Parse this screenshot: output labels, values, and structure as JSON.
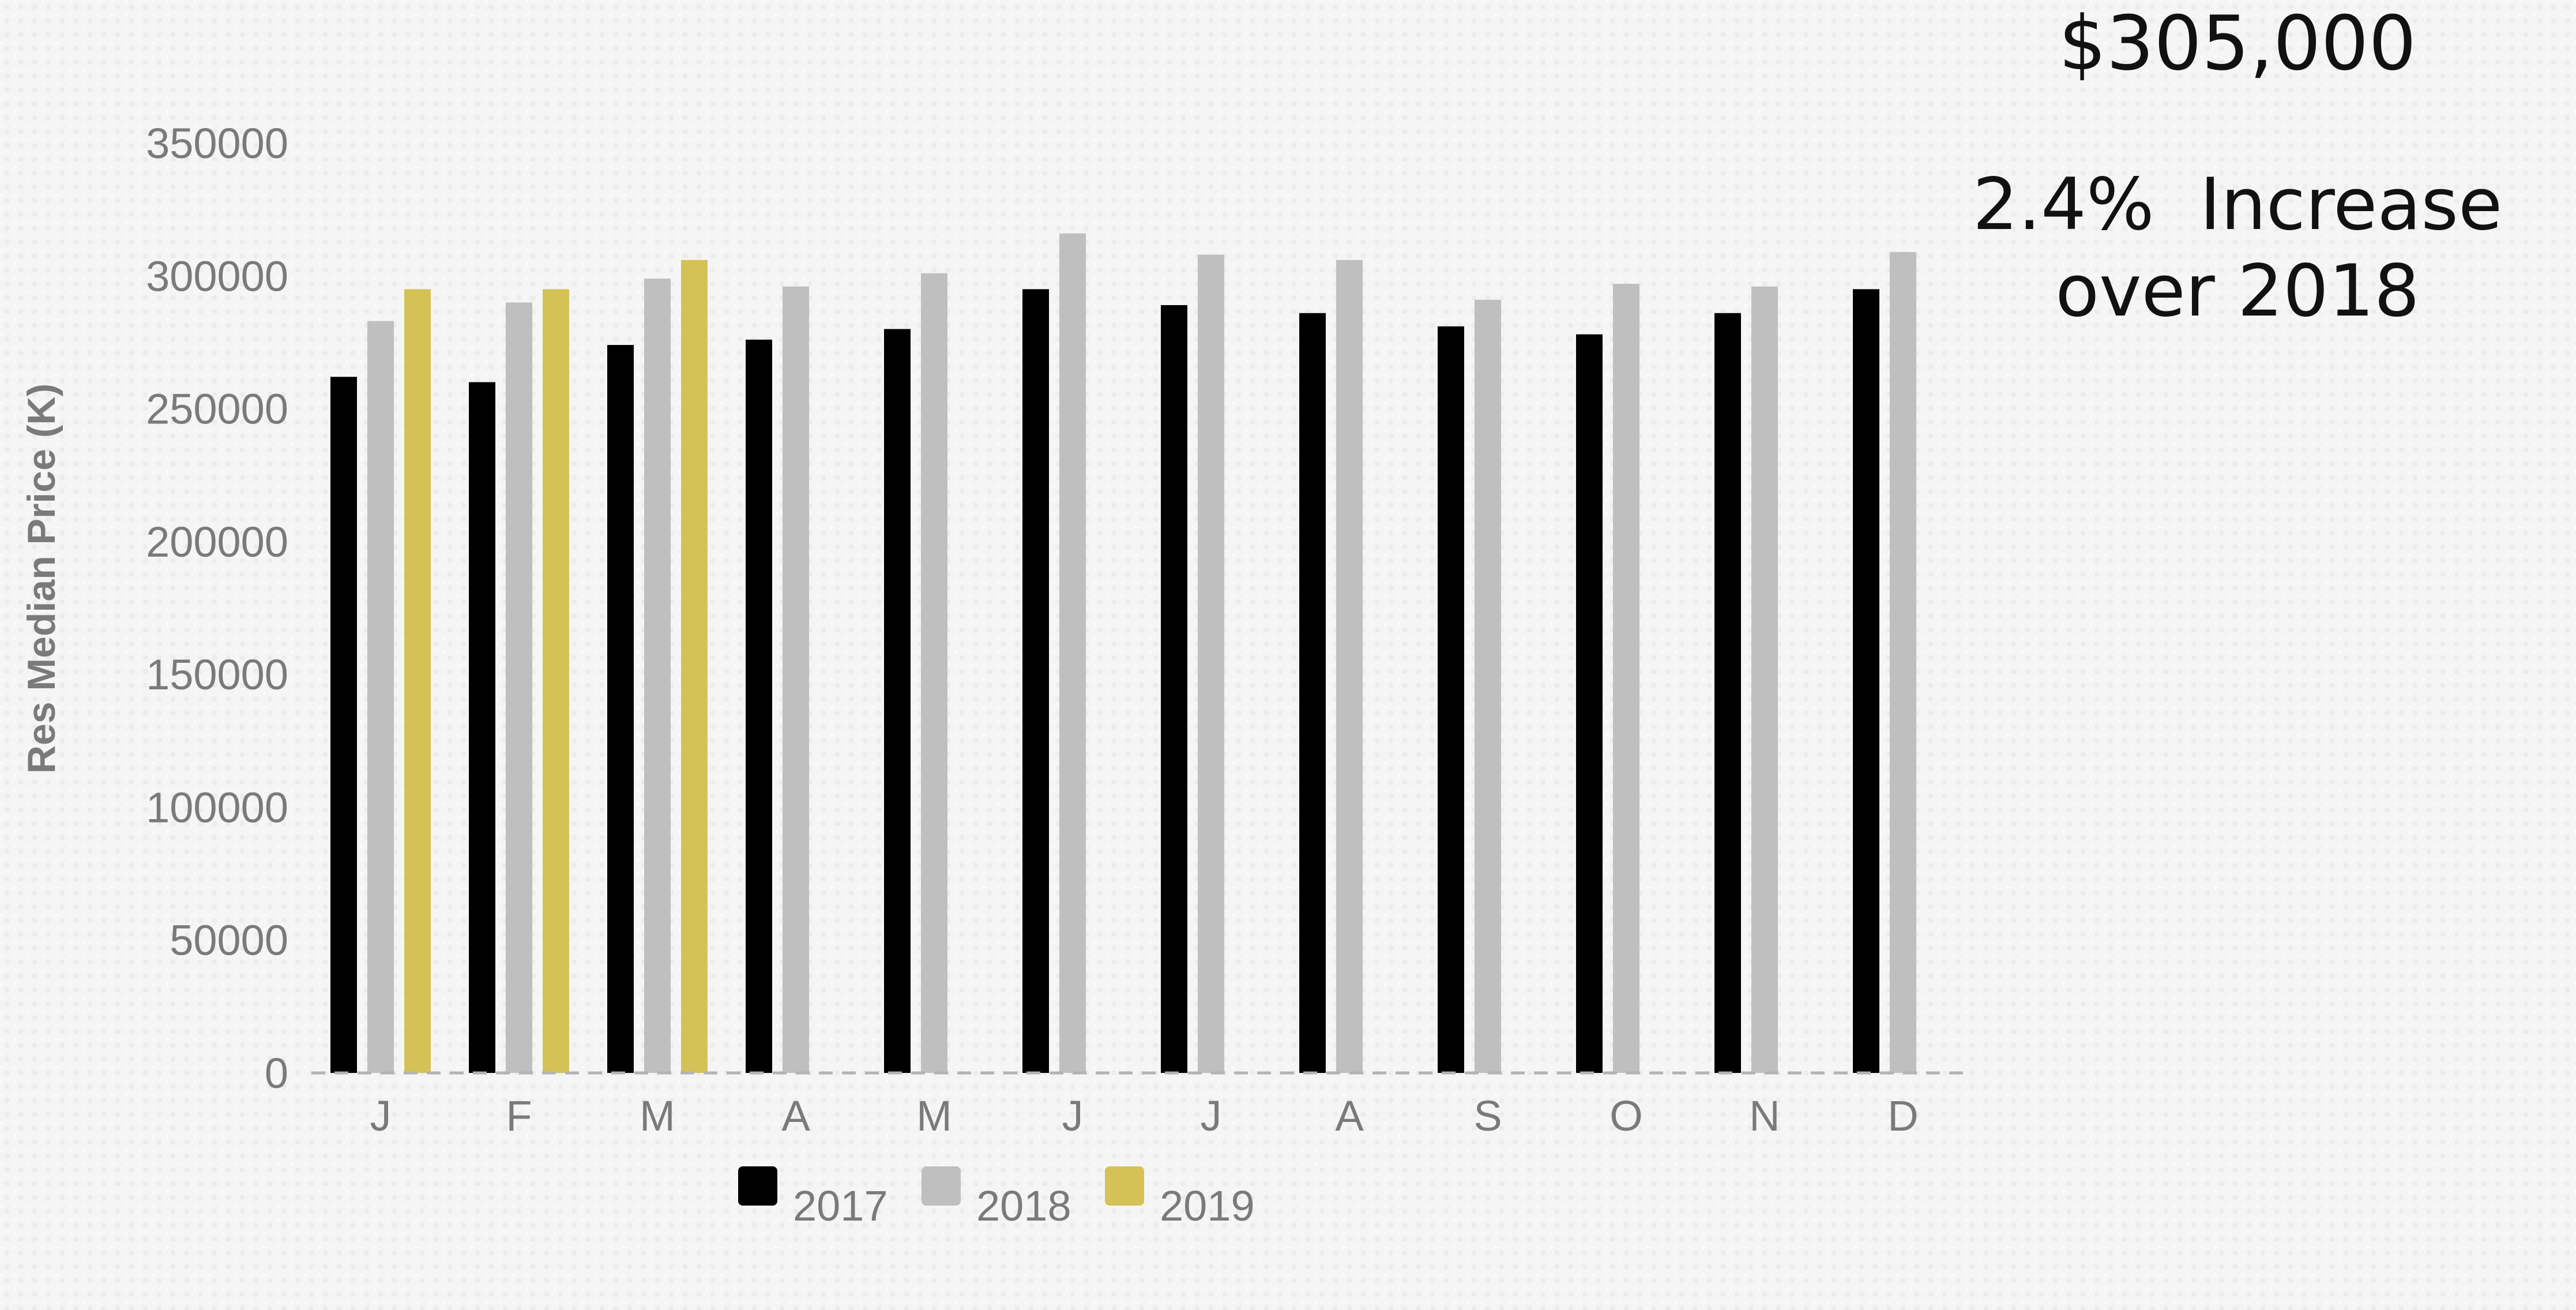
{
  "annotation": {
    "price": "$305,000",
    "change": "2.4%  Increase",
    "comparison": "over 2018"
  },
  "chart_data": {
    "type": "bar",
    "title": "",
    "xlabel": "",
    "ylabel": "Res Median Price (K)",
    "ylim": [
      0,
      350000
    ],
    "yticks": [
      0,
      50000,
      100000,
      150000,
      200000,
      250000,
      300000,
      350000
    ],
    "ytick_labels": [
      "0",
      "50000",
      "100000",
      "150000",
      "200000",
      "250000",
      "300000",
      "350000"
    ],
    "categories": [
      "J",
      "F",
      "M",
      "A",
      "M",
      "J",
      "J",
      "A",
      "S",
      "O",
      "N",
      "D"
    ],
    "series": [
      {
        "name": "2017",
        "color": "#000000",
        "values": [
          262000,
          260000,
          274000,
          276000,
          280000,
          295000,
          289000,
          286000,
          281000,
          278000,
          286000,
          295000
        ]
      },
      {
        "name": "2018",
        "color": "#bfbfbf",
        "values": [
          283000,
          290000,
          299000,
          296000,
          301000,
          316000,
          308000,
          306000,
          291000,
          297000,
          296000,
          309000
        ]
      },
      {
        "name": "2019",
        "color": "#d4c257",
        "values": [
          295000,
          295000,
          306000,
          null,
          null,
          null,
          null,
          null,
          null,
          null,
          null,
          null
        ]
      }
    ],
    "grid": false,
    "baseline": "dashed",
    "legend": {
      "position": "bottom-center",
      "entries": [
        "2017",
        "2018",
        "2019"
      ]
    }
  }
}
